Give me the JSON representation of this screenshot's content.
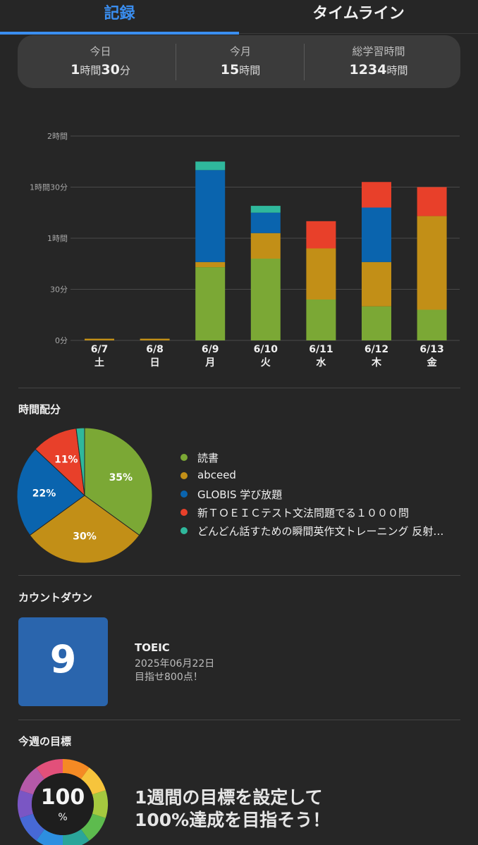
{
  "tabs": {
    "records": "記録",
    "timeline": "タイムライン"
  },
  "summary": [
    {
      "label": "今日",
      "parts": [
        [
          "1",
          true
        ],
        [
          "時間",
          false
        ],
        [
          "30",
          true
        ],
        [
          "分",
          false
        ]
      ]
    },
    {
      "label": "今月",
      "parts": [
        [
          "15",
          true
        ],
        [
          "時間",
          false
        ]
      ]
    },
    {
      "label": "総学習時間",
      "parts": [
        [
          "1234",
          true
        ],
        [
          "時間",
          false
        ]
      ]
    }
  ],
  "colors": {
    "book": "#7ba835",
    "abceed": "#c28f17",
    "globis": "#0a64ae",
    "toeic_drill": "#e8402a",
    "training": "#2fb89c"
  },
  "chart_data": {
    "type": "bar",
    "stacked": true,
    "categories": [
      "6/7",
      "6/8",
      "6/9",
      "6/10",
      "6/11",
      "6/12",
      "6/13"
    ],
    "weekdays": [
      "土",
      "日",
      "月",
      "火",
      "水",
      "木",
      "金"
    ],
    "yticks": [
      {
        "value": 0,
        "label": "0分"
      },
      {
        "value": 30,
        "label": "30分"
      },
      {
        "value": 60,
        "label": "1時間"
      },
      {
        "value": 90,
        "label": "1時間30分"
      },
      {
        "value": 120,
        "label": "2時間"
      }
    ],
    "ylim": [
      0,
      120
    ],
    "unit": "minutes",
    "series": [
      {
        "key": "book",
        "values": [
          0,
          0,
          43,
          48,
          24,
          20,
          18
        ]
      },
      {
        "key": "abceed",
        "values": [
          1,
          1,
          3,
          15,
          30,
          26,
          55
        ]
      },
      {
        "key": "globis",
        "values": [
          0,
          0,
          54,
          12,
          0,
          32,
          0
        ]
      },
      {
        "key": "toeic_drill",
        "values": [
          0,
          0,
          0,
          0,
          16,
          15,
          17
        ]
      },
      {
        "key": "training",
        "values": [
          0,
          0,
          5,
          4,
          0,
          0,
          0
        ]
      }
    ],
    "grid": true
  },
  "distribution": {
    "title": "時間配分",
    "chart_data": {
      "type": "pie",
      "slices": [
        {
          "key": "book",
          "label": "読書",
          "value": 35,
          "text": "35%"
        },
        {
          "key": "abceed",
          "label": "abceed",
          "value": 30,
          "text": "30%"
        },
        {
          "key": "globis",
          "label": "GLOBIS 学び放題",
          "value": 22,
          "text": "22%"
        },
        {
          "key": "toeic_drill",
          "label": "新ＴＯＥＩＣテスト文法問題でる１０００問",
          "value": 11,
          "text": "11%"
        },
        {
          "key": "training",
          "label": "どんどん話すための瞬間英作文トレーニング 反射…",
          "value": 2,
          "text": ""
        }
      ]
    }
  },
  "countdown": {
    "title": "カウントダウン",
    "days": "9",
    "event": "TOEIC",
    "date": "2025年06月22日",
    "note": "目指せ800点！"
  },
  "weekly_goal": {
    "title": "今週の目標",
    "value": "100",
    "unit": "%",
    "message_line1": "1週間の目標を設定して",
    "message_line2": "100%達成を目指そう！",
    "ring_colors": [
      "#f58a24",
      "#f7c43c",
      "#a5c93f",
      "#5dbb4e",
      "#2aa59a",
      "#2d8fe0",
      "#4769d6",
      "#7a56c4",
      "#b559a8",
      "#e2507a"
    ]
  }
}
